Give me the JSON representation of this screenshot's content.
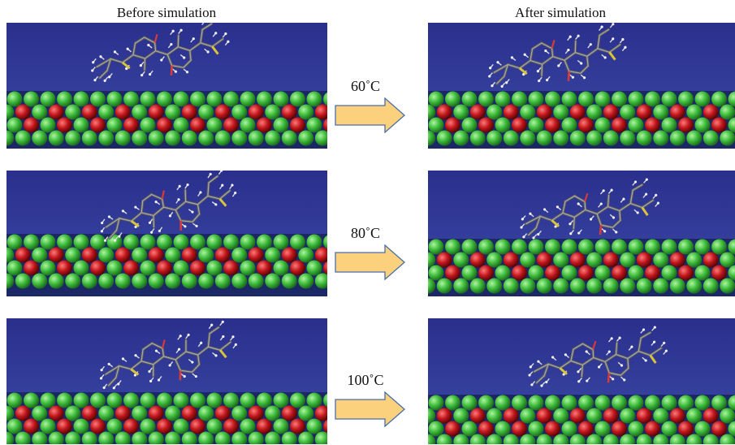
{
  "headers": {
    "before": "Before simulation",
    "after": "After simulation"
  },
  "rows": [
    {
      "temperature": "60˚C"
    },
    {
      "temperature": "80˚C"
    },
    {
      "temperature": "100˚C"
    }
  ],
  "colors": {
    "background_top": "#2a2f8c",
    "background_bottom": "#3c4aa8",
    "calcium_atom": "#3dbb3a",
    "oxygen_atom": "#c0161b",
    "arrow_fill": "#fbd17e",
    "arrow_stroke": "#4a6ea8"
  }
}
